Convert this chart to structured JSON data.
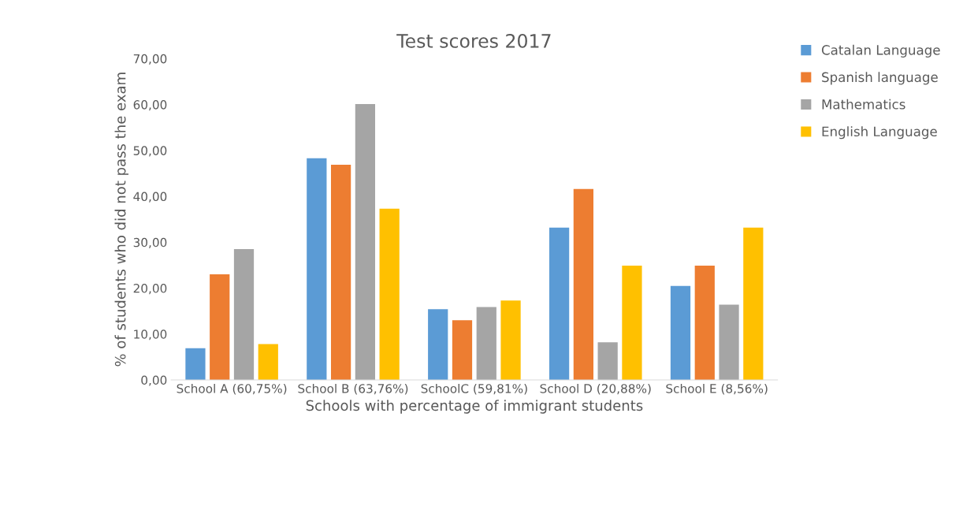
{
  "chart_data": {
    "type": "bar",
    "title": "Test scores 2017",
    "xlabel": "Schools with percentage of immigrant students",
    "ylabel": "% of students who did not pass the exam",
    "categories": [
      "School A (60,75%)",
      "School B (63,76%)",
      "SchoolC (59,81%)",
      "School D (20,88%)",
      "School E (8,56%)"
    ],
    "series": [
      {
        "name": "Catalan Language",
        "color": "#5b9bd5",
        "values": [
          6.9,
          48.3,
          15.4,
          33.2,
          20.5
        ]
      },
      {
        "name": "Spanish language",
        "color": "#ed7d31",
        "values": [
          23.0,
          46.9,
          13.0,
          41.6,
          24.9
        ]
      },
      {
        "name": "Mathematics",
        "color": "#a5a5a5",
        "values": [
          28.5,
          60.1,
          15.9,
          8.2,
          16.4
        ]
      },
      {
        "name": "English Language",
        "color": "#ffc000",
        "values": [
          7.8,
          37.3,
          17.3,
          24.9,
          33.2
        ]
      }
    ],
    "ylim": [
      0,
      70
    ],
    "yticks": [
      {
        "value": 0,
        "label": "0,00"
      },
      {
        "value": 10,
        "label": "10,00"
      },
      {
        "value": 20,
        "label": "20,00"
      },
      {
        "value": 30,
        "label": "30,00"
      },
      {
        "value": 40,
        "label": "40,00"
      },
      {
        "value": 50,
        "label": "50,00"
      },
      {
        "value": 60,
        "label": "60,00"
      },
      {
        "value": 70,
        "label": "70,00"
      }
    ],
    "grid": false,
    "legend": "right"
  }
}
